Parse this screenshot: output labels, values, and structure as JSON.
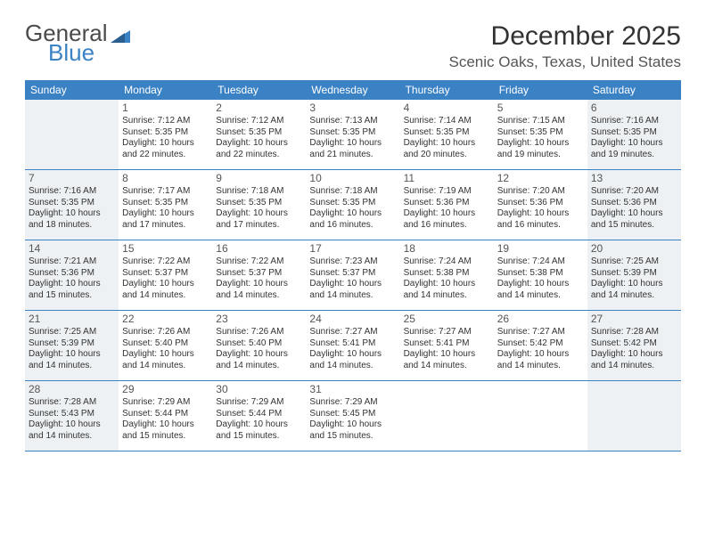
{
  "logo": {
    "line1": "General",
    "line2": "Blue"
  },
  "title": "December 2025",
  "location": "Scenic Oaks, Texas, United States",
  "colors": {
    "header_bg": "#3b82c4",
    "shade_bg": "#eef1f3",
    "text": "#333333",
    "logo_gray": "#4a4a4a",
    "logo_blue": "#3b82c4"
  },
  "dayNames": [
    "Sunday",
    "Monday",
    "Tuesday",
    "Wednesday",
    "Thursday",
    "Friday",
    "Saturday"
  ],
  "weeks": [
    [
      {
        "day": "",
        "sunrise": "",
        "sunset": "",
        "daylight1": "",
        "daylight2": ""
      },
      {
        "day": "1",
        "sunrise": "Sunrise: 7:12 AM",
        "sunset": "Sunset: 5:35 PM",
        "daylight1": "Daylight: 10 hours",
        "daylight2": "and 22 minutes."
      },
      {
        "day": "2",
        "sunrise": "Sunrise: 7:12 AM",
        "sunset": "Sunset: 5:35 PM",
        "daylight1": "Daylight: 10 hours",
        "daylight2": "and 22 minutes."
      },
      {
        "day": "3",
        "sunrise": "Sunrise: 7:13 AM",
        "sunset": "Sunset: 5:35 PM",
        "daylight1": "Daylight: 10 hours",
        "daylight2": "and 21 minutes."
      },
      {
        "day": "4",
        "sunrise": "Sunrise: 7:14 AM",
        "sunset": "Sunset: 5:35 PM",
        "daylight1": "Daylight: 10 hours",
        "daylight2": "and 20 minutes."
      },
      {
        "day": "5",
        "sunrise": "Sunrise: 7:15 AM",
        "sunset": "Sunset: 5:35 PM",
        "daylight1": "Daylight: 10 hours",
        "daylight2": "and 19 minutes."
      },
      {
        "day": "6",
        "sunrise": "Sunrise: 7:16 AM",
        "sunset": "Sunset: 5:35 PM",
        "daylight1": "Daylight: 10 hours",
        "daylight2": "and 19 minutes."
      }
    ],
    [
      {
        "day": "7",
        "sunrise": "Sunrise: 7:16 AM",
        "sunset": "Sunset: 5:35 PM",
        "daylight1": "Daylight: 10 hours",
        "daylight2": "and 18 minutes."
      },
      {
        "day": "8",
        "sunrise": "Sunrise: 7:17 AM",
        "sunset": "Sunset: 5:35 PM",
        "daylight1": "Daylight: 10 hours",
        "daylight2": "and 17 minutes."
      },
      {
        "day": "9",
        "sunrise": "Sunrise: 7:18 AM",
        "sunset": "Sunset: 5:35 PM",
        "daylight1": "Daylight: 10 hours",
        "daylight2": "and 17 minutes."
      },
      {
        "day": "10",
        "sunrise": "Sunrise: 7:18 AM",
        "sunset": "Sunset: 5:35 PM",
        "daylight1": "Daylight: 10 hours",
        "daylight2": "and 16 minutes."
      },
      {
        "day": "11",
        "sunrise": "Sunrise: 7:19 AM",
        "sunset": "Sunset: 5:36 PM",
        "daylight1": "Daylight: 10 hours",
        "daylight2": "and 16 minutes."
      },
      {
        "day": "12",
        "sunrise": "Sunrise: 7:20 AM",
        "sunset": "Sunset: 5:36 PM",
        "daylight1": "Daylight: 10 hours",
        "daylight2": "and 16 minutes."
      },
      {
        "day": "13",
        "sunrise": "Sunrise: 7:20 AM",
        "sunset": "Sunset: 5:36 PM",
        "daylight1": "Daylight: 10 hours",
        "daylight2": "and 15 minutes."
      }
    ],
    [
      {
        "day": "14",
        "sunrise": "Sunrise: 7:21 AM",
        "sunset": "Sunset: 5:36 PM",
        "daylight1": "Daylight: 10 hours",
        "daylight2": "and 15 minutes."
      },
      {
        "day": "15",
        "sunrise": "Sunrise: 7:22 AM",
        "sunset": "Sunset: 5:37 PM",
        "daylight1": "Daylight: 10 hours",
        "daylight2": "and 14 minutes."
      },
      {
        "day": "16",
        "sunrise": "Sunrise: 7:22 AM",
        "sunset": "Sunset: 5:37 PM",
        "daylight1": "Daylight: 10 hours",
        "daylight2": "and 14 minutes."
      },
      {
        "day": "17",
        "sunrise": "Sunrise: 7:23 AM",
        "sunset": "Sunset: 5:37 PM",
        "daylight1": "Daylight: 10 hours",
        "daylight2": "and 14 minutes."
      },
      {
        "day": "18",
        "sunrise": "Sunrise: 7:24 AM",
        "sunset": "Sunset: 5:38 PM",
        "daylight1": "Daylight: 10 hours",
        "daylight2": "and 14 minutes."
      },
      {
        "day": "19",
        "sunrise": "Sunrise: 7:24 AM",
        "sunset": "Sunset: 5:38 PM",
        "daylight1": "Daylight: 10 hours",
        "daylight2": "and 14 minutes."
      },
      {
        "day": "20",
        "sunrise": "Sunrise: 7:25 AM",
        "sunset": "Sunset: 5:39 PM",
        "daylight1": "Daylight: 10 hours",
        "daylight2": "and 14 minutes."
      }
    ],
    [
      {
        "day": "21",
        "sunrise": "Sunrise: 7:25 AM",
        "sunset": "Sunset: 5:39 PM",
        "daylight1": "Daylight: 10 hours",
        "daylight2": "and 14 minutes."
      },
      {
        "day": "22",
        "sunrise": "Sunrise: 7:26 AM",
        "sunset": "Sunset: 5:40 PM",
        "daylight1": "Daylight: 10 hours",
        "daylight2": "and 14 minutes."
      },
      {
        "day": "23",
        "sunrise": "Sunrise: 7:26 AM",
        "sunset": "Sunset: 5:40 PM",
        "daylight1": "Daylight: 10 hours",
        "daylight2": "and 14 minutes."
      },
      {
        "day": "24",
        "sunrise": "Sunrise: 7:27 AM",
        "sunset": "Sunset: 5:41 PM",
        "daylight1": "Daylight: 10 hours",
        "daylight2": "and 14 minutes."
      },
      {
        "day": "25",
        "sunrise": "Sunrise: 7:27 AM",
        "sunset": "Sunset: 5:41 PM",
        "daylight1": "Daylight: 10 hours",
        "daylight2": "and 14 minutes."
      },
      {
        "day": "26",
        "sunrise": "Sunrise: 7:27 AM",
        "sunset": "Sunset: 5:42 PM",
        "daylight1": "Daylight: 10 hours",
        "daylight2": "and 14 minutes."
      },
      {
        "day": "27",
        "sunrise": "Sunrise: 7:28 AM",
        "sunset": "Sunset: 5:42 PM",
        "daylight1": "Daylight: 10 hours",
        "daylight2": "and 14 minutes."
      }
    ],
    [
      {
        "day": "28",
        "sunrise": "Sunrise: 7:28 AM",
        "sunset": "Sunset: 5:43 PM",
        "daylight1": "Daylight: 10 hours",
        "daylight2": "and 14 minutes."
      },
      {
        "day": "29",
        "sunrise": "Sunrise: 7:29 AM",
        "sunset": "Sunset: 5:44 PM",
        "daylight1": "Daylight: 10 hours",
        "daylight2": "and 15 minutes."
      },
      {
        "day": "30",
        "sunrise": "Sunrise: 7:29 AM",
        "sunset": "Sunset: 5:44 PM",
        "daylight1": "Daylight: 10 hours",
        "daylight2": "and 15 minutes."
      },
      {
        "day": "31",
        "sunrise": "Sunrise: 7:29 AM",
        "sunset": "Sunset: 5:45 PM",
        "daylight1": "Daylight: 10 hours",
        "daylight2": "and 15 minutes."
      },
      {
        "day": "",
        "sunrise": "",
        "sunset": "",
        "daylight1": "",
        "daylight2": ""
      },
      {
        "day": "",
        "sunrise": "",
        "sunset": "",
        "daylight1": "",
        "daylight2": ""
      },
      {
        "day": "",
        "sunrise": "",
        "sunset": "",
        "daylight1": "",
        "daylight2": ""
      }
    ]
  ]
}
